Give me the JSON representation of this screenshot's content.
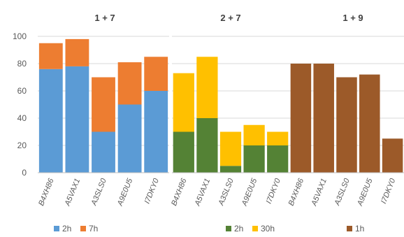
{
  "chart_data": [
    {
      "type": "bar",
      "stacked": true,
      "title": "1 + 7",
      "categories": [
        "B4XH86",
        "A5VAX1",
        "A3SLS0",
        "A9E0U5",
        "I7DKY0"
      ],
      "series": [
        {
          "name": "2h",
          "color": "#5b9bd5",
          "values": [
            76,
            78,
            30,
            50,
            60
          ]
        },
        {
          "name": "7h",
          "color": "#ed7d31",
          "values": [
            19,
            20,
            40,
            31,
            25
          ]
        }
      ],
      "ylim": [
        0,
        100
      ],
      "yticks": [
        0,
        20,
        40,
        60,
        80,
        100
      ],
      "grid": true,
      "legend_position": "bottom"
    },
    {
      "type": "bar",
      "stacked": true,
      "title": "2 + 7",
      "categories": [
        "B4XH86",
        "A5VAX1",
        "A3SLS0",
        "A9E0U5",
        "I7DKY0"
      ],
      "series": [
        {
          "name": "2h",
          "color": "#548235",
          "values": [
            30,
            40,
            5,
            20,
            20
          ]
        },
        {
          "name": "30h",
          "color": "#ffc000",
          "values": [
            43,
            45,
            25,
            15,
            10
          ]
        }
      ],
      "ylim": [
        0,
        100
      ],
      "grid": true,
      "legend_position": "bottom"
    },
    {
      "type": "bar",
      "stacked": true,
      "title": "1 + 9",
      "categories": [
        "B4XH86",
        "A5VAX1",
        "A3SLS0",
        "A9E0U5",
        "I7DKY0"
      ],
      "series": [
        {
          "name": "1h",
          "color": "#9c5a29",
          "values": [
            80,
            80,
            70,
            72,
            25
          ]
        }
      ],
      "ylim": [
        0,
        100
      ],
      "grid": true,
      "legend_position": "bottom"
    }
  ]
}
